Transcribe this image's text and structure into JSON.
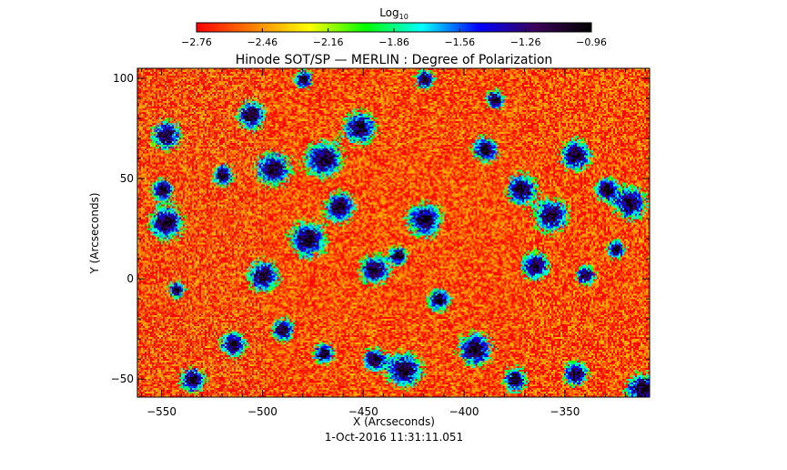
{
  "chart_data": {
    "type": "heatmap",
    "title": "Hinode SOT/SP — MERLIN : Degree of Polarization",
    "xlabel": "X (Arcseconds)",
    "ylabel": "Y (Arcseconds)",
    "xlim": [
      -562,
      -308
    ],
    "ylim": [
      -59,
      105
    ],
    "x_ticks": [
      -550,
      -500,
      -450,
      -400,
      -350
    ],
    "x_tick_labels": [
      "−550",
      "−500",
      "−450",
      "−400",
      "−350"
    ],
    "y_ticks": [
      100,
      50,
      0,
      -50
    ],
    "y_tick_labels": [
      "100",
      "50",
      "0",
      "−50"
    ],
    "timestamp": "1-Oct-2016 11:31:11.051",
    "colorbar": {
      "label_main": "Log",
      "label_sub": "10",
      "range": [
        -2.76,
        -0.96
      ],
      "ticks": [
        -2.76,
        -2.46,
        -2.16,
        -1.86,
        -1.56,
        -1.26,
        -0.96
      ],
      "tick_labels": [
        "−2.76",
        "−2.46",
        "−2.16",
        "−1.86",
        "−1.56",
        "−1.26",
        "−0.96"
      ],
      "colors": [
        "#ff0000",
        "#ff8000",
        "#ffff00",
        "#00ff00",
        "#00ffff",
        "#0000ff",
        "#3c005a",
        "#000000"
      ]
    },
    "field": {
      "background_value": -2.6,
      "network_value": -1.3,
      "strong_value": -1.0,
      "network_patches": [
        {
          "x": -548,
          "y": 72
        },
        {
          "x": -520,
          "y": 52
        },
        {
          "x": -506,
          "y": 82
        },
        {
          "x": -478,
          "y": 20
        },
        {
          "x": -462,
          "y": 36
        },
        {
          "x": -445,
          "y": 5
        },
        {
          "x": -433,
          "y": 12
        },
        {
          "x": -420,
          "y": 30
        },
        {
          "x": -372,
          "y": 45
        },
        {
          "x": -357,
          "y": 32
        },
        {
          "x": -345,
          "y": 62
        },
        {
          "x": -330,
          "y": 45
        },
        {
          "x": -318,
          "y": 38
        },
        {
          "x": -385,
          "y": 90
        },
        {
          "x": -365,
          "y": 7
        },
        {
          "x": -340,
          "y": 2
        },
        {
          "x": -420,
          "y": 100
        },
        {
          "x": -452,
          "y": 76
        },
        {
          "x": -495,
          "y": 55
        },
        {
          "x": -548,
          "y": 28
        },
        {
          "x": -543,
          "y": -5
        },
        {
          "x": -515,
          "y": -32
        },
        {
          "x": -500,
          "y": 2
        },
        {
          "x": -490,
          "y": -25
        },
        {
          "x": -470,
          "y": -37
        },
        {
          "x": -445,
          "y": -40
        },
        {
          "x": -430,
          "y": -45
        },
        {
          "x": -395,
          "y": -35
        },
        {
          "x": -375,
          "y": -50
        },
        {
          "x": -345,
          "y": -47
        },
        {
          "x": -312,
          "y": -55
        },
        {
          "x": -325,
          "y": 15
        },
        {
          "x": -480,
          "y": 100
        },
        {
          "x": -550,
          "y": 45
        },
        {
          "x": -413,
          "y": -10
        },
        {
          "x": -390,
          "y": 65
        },
        {
          "x": -470,
          "y": 60
        },
        {
          "x": -535,
          "y": -50
        }
      ]
    }
  }
}
